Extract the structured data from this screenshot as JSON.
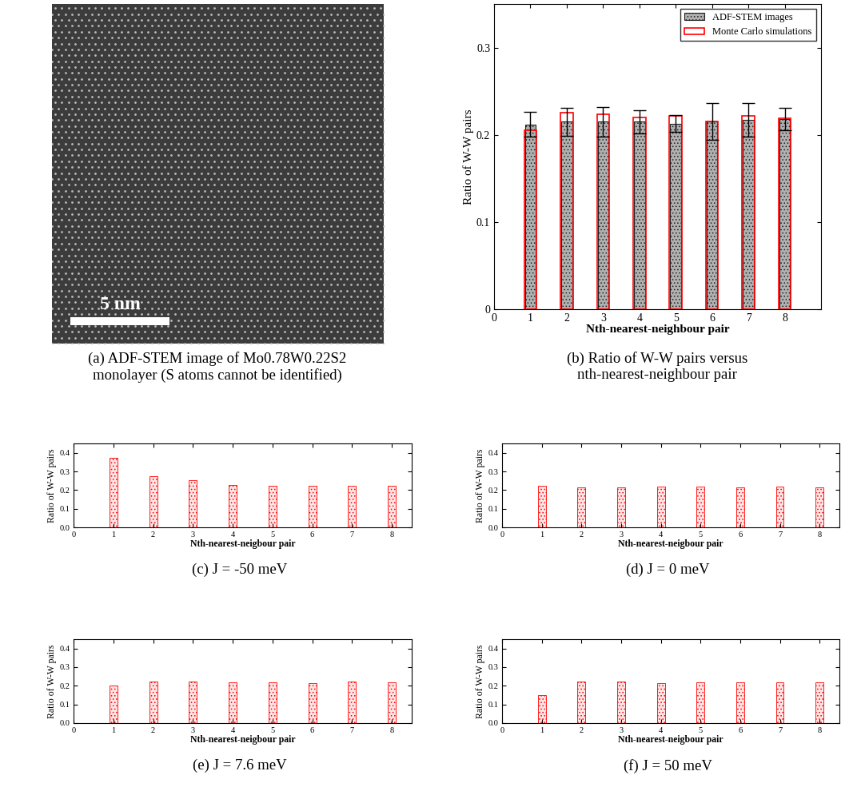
{
  "image": {
    "type": "image",
    "title": "(a) ADF-STEM image of Mo0.78W0.22S2\nmonolayer (S atoms cannot be identified)",
    "scale_bar": "5 nm"
  },
  "chart_data": [
    {
      "type": "bar",
      "title": "(b) Ratio of W-W pairs versus\nnth-nearest-neighbour pair",
      "x": [
        1,
        2,
        3,
        4,
        5,
        6,
        7,
        8
      ],
      "series": [
        {
          "name": "ADF-STEM images",
          "color": "#b0b0b0",
          "values": [
            0.212,
            0.215,
            0.215,
            0.215,
            0.213,
            0.215,
            0.217,
            0.218
          ],
          "errors": [
            0.014,
            0.016,
            0.017,
            0.013,
            0.01,
            0.021,
            0.019,
            0.013
          ]
        },
        {
          "name": "Monte Carlo simulations",
          "color": "#ff0000",
          "values": [
            0.205,
            0.225,
            0.224,
            0.22,
            0.222,
            0.215,
            0.222,
            0.219
          ]
        }
      ],
      "xlabel": "Nth-nearest-neighbour pair",
      "ylabel": "Ratio of W-W pairs",
      "xlim": [
        0,
        9
      ],
      "xticks": [
        0,
        1,
        2,
        3,
        4,
        5,
        6,
        7,
        8
      ],
      "ylim": [
        0,
        0.35
      ],
      "yticks": [
        0,
        0.1,
        0.2,
        0.3
      ],
      "legend": "upper right"
    },
    {
      "type": "bar",
      "title": "(c) J = -50 meV",
      "color": "#ff0000",
      "x": [
        1,
        2,
        3,
        4,
        5,
        6,
        7,
        8
      ],
      "values": [
        0.375,
        0.275,
        0.255,
        0.228,
        0.222,
        0.222,
        0.222,
        0.222
      ],
      "xlabel": "Nth-nearest-neigbour pair",
      "ylabel": "Ratio of W-W pairs",
      "xlim": [
        0,
        8.5
      ],
      "xticks": [
        0,
        1,
        2,
        3,
        4,
        5,
        6,
        7,
        8
      ],
      "ylim": [
        0.0,
        0.45
      ],
      "yticks": [
        0.0,
        0.1,
        0.2,
        0.3,
        0.4
      ]
    },
    {
      "type": "bar",
      "title": "(d) J = 0 meV",
      "color": "#ff0000",
      "x": [
        1,
        2,
        3,
        4,
        5,
        6,
        7,
        8
      ],
      "values": [
        0.222,
        0.215,
        0.215,
        0.22,
        0.217,
        0.214,
        0.218,
        0.215
      ],
      "xlabel": "Nth-nearest-neigbour pair",
      "ylabel": "Ratio of W-W pairs",
      "xlim": [
        0,
        8.5
      ],
      "xticks": [
        0,
        1,
        2,
        3,
        4,
        5,
        6,
        7,
        8
      ],
      "ylim": [
        0.0,
        0.45
      ],
      "yticks": [
        0.0,
        0.1,
        0.2,
        0.3,
        0.4
      ]
    },
    {
      "type": "bar",
      "title": "(e) J = 7.6 meV",
      "color": "#ff0000",
      "x": [
        1,
        2,
        3,
        4,
        5,
        6,
        7,
        8
      ],
      "values": [
        0.202,
        0.225,
        0.223,
        0.22,
        0.22,
        0.213,
        0.222,
        0.217
      ],
      "xlabel": "Nth-nearest-neigbour pair",
      "ylabel": "Ratio of W-W pairs",
      "xlim": [
        0,
        8.5
      ],
      "xticks": [
        0,
        1,
        2,
        3,
        4,
        5,
        6,
        7,
        8
      ],
      "ylim": [
        0.0,
        0.45
      ],
      "yticks": [
        0.0,
        0.1,
        0.2,
        0.3,
        0.4
      ]
    },
    {
      "type": "bar",
      "title": "(f) J = 50 meV",
      "color": "#ff0000",
      "x": [
        1,
        2,
        3,
        4,
        5,
        6,
        7,
        8
      ],
      "values": [
        0.148,
        0.225,
        0.222,
        0.215,
        0.217,
        0.218,
        0.22,
        0.217
      ],
      "xlabel": "Nth-nearest-neigbour pair",
      "ylabel": "Ratio of W-W pairs",
      "xlim": [
        0,
        8.5
      ],
      "xticks": [
        0,
        1,
        2,
        3,
        4,
        5,
        6,
        7,
        8
      ],
      "ylim": [
        0.0,
        0.45
      ],
      "yticks": [
        0.0,
        0.1,
        0.2,
        0.3,
        0.4
      ]
    }
  ]
}
